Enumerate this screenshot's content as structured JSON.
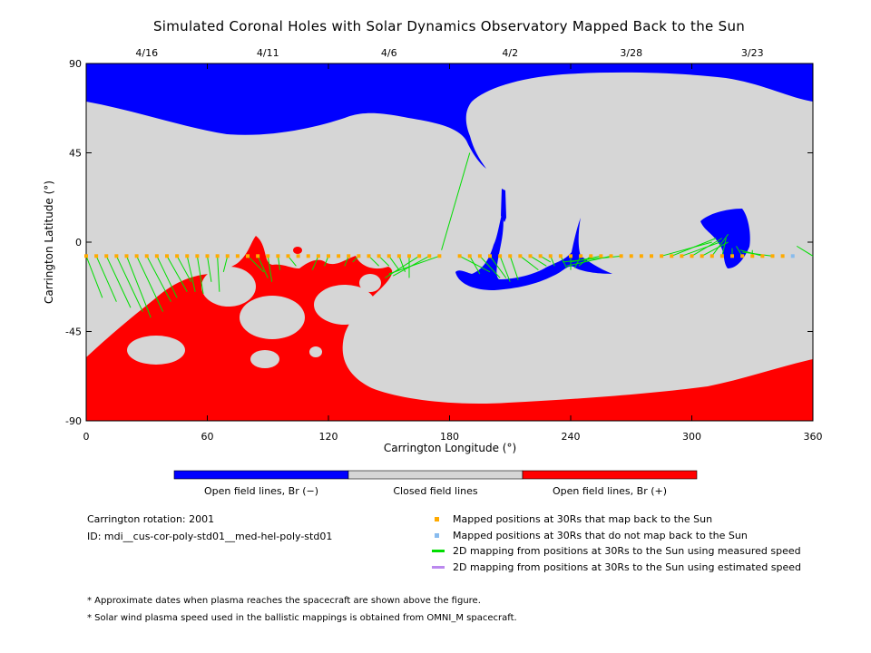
{
  "chart_data": {
    "type": "map",
    "title": "Simulated Coronal Holes with Solar Dynamics Observatory Mapped Back to the Sun",
    "xlabel": "Carrington Longitude (°)",
    "ylabel": "Carrington Latitude (°)",
    "xlim": [
      0,
      360
    ],
    "ylim": [
      -90,
      90
    ],
    "x_ticks": [
      "0",
      "60",
      "120",
      "180",
      "240",
      "300",
      "360"
    ],
    "y_ticks": [
      "90",
      "45",
      "0",
      "-45",
      "-90"
    ],
    "top_dates": [
      {
        "label": "4/16",
        "lon": 30
      },
      {
        "label": "4/11",
        "lon": 90
      },
      {
        "label": "4/6",
        "lon": 150
      },
      {
        "label": "4/2",
        "lon": 210
      },
      {
        "label": "3/28",
        "lon": 270
      },
      {
        "label": "3/23",
        "lon": 330
      }
    ],
    "colorbar": [
      {
        "label": "Open field lines, Br (−)",
        "color": "#0000ff"
      },
      {
        "label": "Closed field lines",
        "color": "#d6d6d6"
      },
      {
        "label": "Open field lines, Br (+)",
        "color": "#ff0000"
      }
    ],
    "mapped_latitude": -7,
    "mapped_points_lon": [
      0,
      5,
      10,
      15,
      20,
      25,
      30,
      35,
      40,
      45,
      50,
      55,
      60,
      65,
      70,
      75,
      80,
      85,
      90,
      95,
      100,
      105,
      110,
      115,
      120,
      125,
      130,
      135,
      140,
      145,
      150,
      155,
      160,
      165,
      170,
      175,
      185,
      190,
      195,
      200,
      205,
      210,
      215,
      220,
      225,
      230,
      235,
      240,
      245,
      250,
      255,
      260,
      265,
      270,
      275,
      280,
      285,
      290,
      295,
      300,
      305,
      310,
      315,
      320,
      325,
      330,
      335,
      340,
      345
    ],
    "unmapped_points_lon": [
      350
    ],
    "mapping_lines_measured": [
      [
        0,
        -7,
        8,
        -28
      ],
      [
        5,
        -7,
        15,
        -30
      ],
      [
        10,
        -7,
        22,
        -33
      ],
      [
        15,
        -7,
        28,
        -35
      ],
      [
        20,
        -7,
        32,
        -38
      ],
      [
        25,
        -7,
        38,
        -35
      ],
      [
        30,
        -7,
        42,
        -30
      ],
      [
        35,
        -7,
        45,
        -28
      ],
      [
        40,
        -7,
        50,
        -25
      ],
      [
        45,
        -7,
        52,
        -20
      ],
      [
        50,
        -7,
        54,
        -25
      ],
      [
        55,
        -7,
        58,
        -26
      ],
      [
        60,
        -7,
        62,
        -20
      ],
      [
        65,
        -7,
        66,
        -25
      ],
      [
        70,
        -7,
        68,
        -15
      ],
      [
        80,
        -7,
        88,
        -15
      ],
      [
        85,
        -7,
        90,
        -18
      ],
      [
        90,
        -7,
        92,
        -20
      ],
      [
        95,
        -7,
        96,
        -14
      ],
      [
        100,
        -7,
        104,
        -12
      ],
      [
        115,
        -7,
        112,
        -14
      ],
      [
        120,
        -7,
        118,
        -12
      ],
      [
        130,
        -7,
        128,
        -12
      ],
      [
        135,
        -7,
        132,
        -10
      ],
      [
        140,
        -7,
        145,
        -12
      ],
      [
        145,
        -7,
        150,
        -12
      ],
      [
        150,
        -7,
        155,
        -14
      ],
      [
        155,
        -7,
        158,
        -15
      ],
      [
        160,
        -7,
        160,
        -18
      ],
      [
        165,
        -7,
        148,
        -18
      ],
      [
        170,
        -7,
        152,
        -17
      ],
      [
        175,
        -7,
        150,
        -16
      ],
      [
        176,
        -4,
        190,
        45
      ],
      [
        185,
        -7,
        200,
        -15
      ],
      [
        190,
        -7,
        195,
        -16
      ],
      [
        195,
        -7,
        205,
        -18
      ],
      [
        200,
        -7,
        208,
        -18
      ],
      [
        205,
        -7,
        210,
        -20
      ],
      [
        210,
        -7,
        214,
        -19
      ],
      [
        215,
        -7,
        224,
        -14
      ],
      [
        220,
        -7,
        228,
        -12
      ],
      [
        225,
        -7,
        230,
        -10
      ],
      [
        230,
        -7,
        232,
        -12
      ],
      [
        235,
        -7,
        238,
        -13
      ],
      [
        240,
        -7,
        240,
        -14
      ],
      [
        245,
        -7,
        242,
        -13
      ],
      [
        250,
        -7,
        244,
        -12
      ],
      [
        255,
        -7,
        240,
        -10
      ],
      [
        260,
        -7,
        238,
        -12
      ],
      [
        265,
        -7,
        236,
        -10
      ],
      [
        285,
        -7,
        310,
        0
      ],
      [
        290,
        -7,
        312,
        2
      ],
      [
        295,
        -7,
        314,
        0
      ],
      [
        300,
        -7,
        315,
        2
      ],
      [
        305,
        -7,
        318,
        0
      ],
      [
        310,
        -7,
        318,
        4
      ],
      [
        315,
        -7,
        317,
        2
      ],
      [
        320,
        -7,
        320,
        -3
      ],
      [
        325,
        -7,
        322,
        -2
      ],
      [
        330,
        -7,
        330,
        -4
      ],
      [
        335,
        -7,
        324,
        -4
      ],
      [
        340,
        -7,
        325,
        -5
      ],
      [
        360,
        -7,
        352,
        -2
      ]
    ]
  },
  "notes": {
    "rotation": "Carrington rotation: 2001",
    "id": "ID: mdi__cus-cor-poly-std01__med-hel-poly-std01",
    "footnote1": "* Approximate dates when plasma reaches the spacecraft are shown above the figure.",
    "footnote2": "* Solar wind plasma speed used in the ballistic mappings is obtained from OMNI_M spacecraft."
  },
  "legend": {
    "mapped": {
      "label": "Mapped positions at 30Rs that map back to the Sun",
      "color": "#ffaa00"
    },
    "unmapped": {
      "label": "Mapped positions at 30Rs that do not map back to the Sun",
      "color": "#88bbee"
    },
    "measured": {
      "label": "2D mapping from positions at 30Rs to the Sun using measured speed",
      "color": "#00dd00"
    },
    "estimated": {
      "label": "2D mapping from positions at 30Rs to the Sun using estimated speed",
      "color": "#bb88ee"
    }
  }
}
